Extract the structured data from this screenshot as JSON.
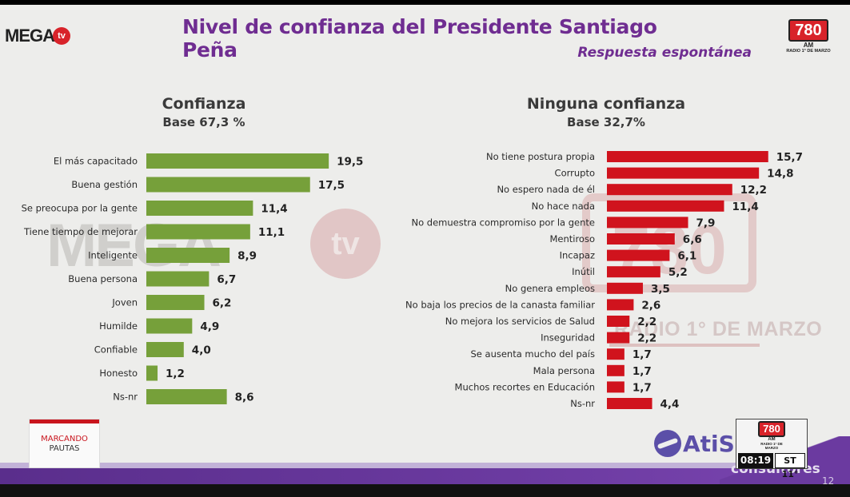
{
  "header": {
    "title": "Nivel de confianza del Presidente Santiago Peña",
    "subtitle": "Respuesta espontánea"
  },
  "logos": {
    "mega_text": "MEGA",
    "mega_tv": "tv",
    "station": "780",
    "station_am": "AM",
    "station_name": "RADIO 1° DE MARZO"
  },
  "watermarks": {
    "mega": "MEGA",
    "tv": "tv",
    "station": "780",
    "station_name": "RADIO 1° DE MARZO"
  },
  "footer": {
    "program_line1": "MARCANDO",
    "program_line2": "PAUTAS",
    "brand": "AtiS",
    "brand_sub": "consultores",
    "clock_time": "08:19",
    "clock_temp": "ST 11°",
    "page_number": "12"
  },
  "colors": {
    "title": "#6f2d91",
    "confianza_bars": "#76a03a",
    "ninguna_bars": "#d0131d",
    "footer_band": "#5a2e8c"
  },
  "chart_data": [
    {
      "type": "bar",
      "orientation": "horizontal",
      "title": "Confianza",
      "subtitle": "Base 67,3 %",
      "categories": [
        "El más capacitado",
        "Buena gestión",
        "Se preocupa por la gente",
        "Tiene tiempo de mejorar",
        "Inteligente",
        "Buena persona",
        "Joven",
        "Humilde",
        "Confiable",
        "Honesto",
        "Ns-nr"
      ],
      "values": [
        19.5,
        17.5,
        11.4,
        11.1,
        8.9,
        6.7,
        6.2,
        4.9,
        4.0,
        1.2,
        8.6
      ],
      "value_labels": [
        "19,5",
        "17,5",
        "11,4",
        "11,1",
        "8,9",
        "6,7",
        "6,2",
        "4,9",
        "4,0",
        "1,2",
        "8,6"
      ],
      "color": "#76a03a"
    },
    {
      "type": "bar",
      "orientation": "horizontal",
      "title": "Ninguna confianza",
      "subtitle": "Base 32,7%",
      "categories": [
        "No tiene postura propia",
        "Corrupto",
        "No espero nada de él",
        "No hace nada",
        "No demuestra compromiso por la gente",
        "Mentiroso",
        "Incapaz",
        "Inútil",
        "No genera empleos",
        "No baja los precios de la canasta familiar",
        "No mejora los servicios de Salud",
        "Inseguridad",
        "Se ausenta mucho del país",
        "Mala persona",
        "Muchos recortes en Educación",
        "Ns-nr"
      ],
      "values": [
        15.7,
        14.8,
        12.2,
        11.4,
        7.9,
        6.6,
        6.1,
        5.2,
        3.5,
        2.6,
        2.2,
        2.2,
        1.7,
        1.7,
        1.7,
        4.4
      ],
      "value_labels": [
        "15,7",
        "14,8",
        "12,2",
        "11,4",
        "7,9",
        "6,6",
        "6,1",
        "5,2",
        "3,5",
        "2,6",
        "2,2",
        "2,2",
        "1,7",
        "1,7",
        "1,7",
        "4,4"
      ],
      "color": "#d0131d"
    }
  ]
}
